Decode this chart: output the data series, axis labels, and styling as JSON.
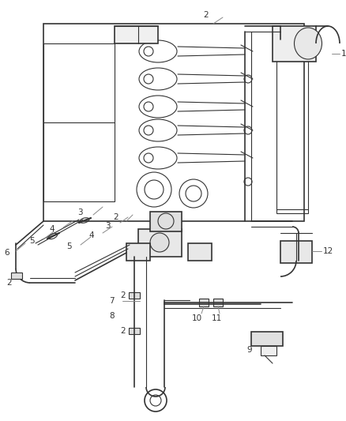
{
  "bg_color": "#ffffff",
  "line_color": "#333333",
  "label_color": "#333333",
  "lfs": 7.5,
  "fig_w": 4.38,
  "fig_h": 5.33,
  "dpi": 100
}
